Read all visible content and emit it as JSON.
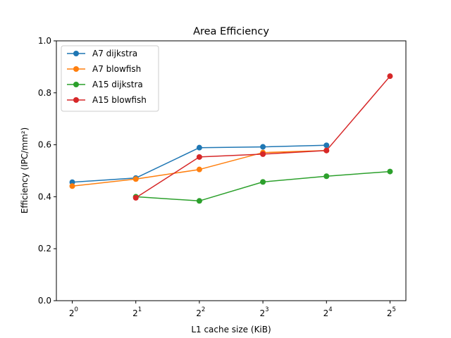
{
  "chart_data": {
    "type": "line",
    "title": "Area Efficiency",
    "xlabel": "L1 cache size (KiB)",
    "ylabel": "Efficiency (IPC/mm²)",
    "x_scale": "log2",
    "x_base": "2",
    "x_exponents": [
      "0",
      "1",
      "2",
      "3",
      "4",
      "5"
    ],
    "x_ticks": [
      1,
      2,
      4,
      8,
      16,
      32
    ],
    "ylim": [
      0,
      1
    ],
    "y_ticks": [
      "0.0",
      "0.2",
      "0.4",
      "0.6",
      "0.8",
      "1.0"
    ],
    "grid": false,
    "legend_position": "top-left",
    "series": [
      {
        "name": "A7 dijkstra",
        "color": "#1f77b4",
        "x": [
          1,
          2,
          4,
          8,
          16
        ],
        "y": [
          0.456,
          0.472,
          0.589,
          0.592,
          0.598
        ]
      },
      {
        "name": "A7 blowfish",
        "color": "#ff7f0e",
        "x": [
          1,
          2,
          4,
          8,
          16
        ],
        "y": [
          0.441,
          0.468,
          0.505,
          0.57,
          0.578
        ]
      },
      {
        "name": "A15 dijkstra",
        "color": "#2ca02c",
        "x": [
          2,
          4,
          8,
          16,
          32
        ],
        "y": [
          0.4,
          0.384,
          0.457,
          0.479,
          0.497
        ]
      },
      {
        "name": "A15 blowfish",
        "color": "#d62728",
        "x": [
          2,
          4,
          8,
          16,
          32
        ],
        "y": [
          0.396,
          0.553,
          0.564,
          0.578,
          0.864
        ]
      }
    ]
  }
}
